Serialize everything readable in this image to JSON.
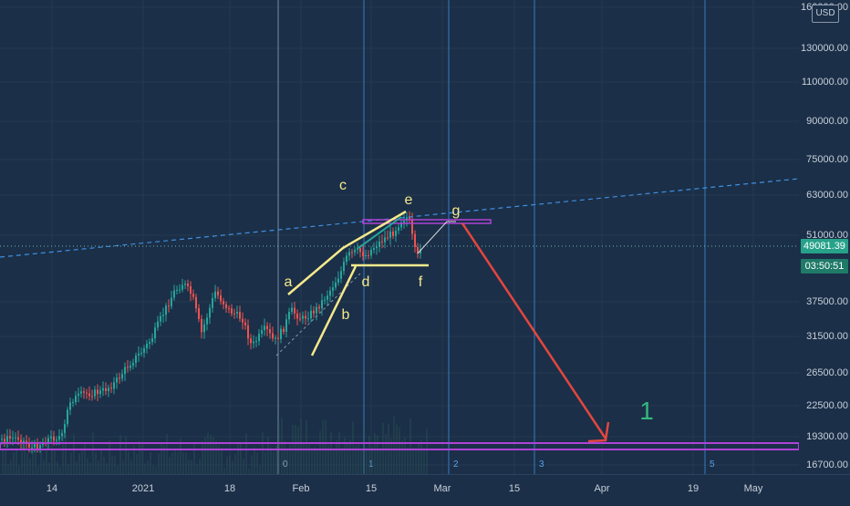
{
  "currency": "USD",
  "price_axis": [
    {
      "label": "160000.00",
      "value": 160000
    },
    {
      "label": "130000.00",
      "value": 130000
    },
    {
      "label": "110000.00",
      "value": 110000
    },
    {
      "label": "90000.00",
      "value": 90000
    },
    {
      "label": "75000.00",
      "value": 75000
    },
    {
      "label": "63000.00",
      "value": 63000
    },
    {
      "label": "51000.00",
      "value": 51000
    },
    {
      "label": "37500.00",
      "value": 37500
    },
    {
      "label": "31500.00",
      "value": 31500
    },
    {
      "label": "26500.00",
      "value": 26500
    },
    {
      "label": "22500.00",
      "value": 22500
    },
    {
      "label": "19300.00",
      "value": 19300
    },
    {
      "label": "16700.00",
      "value": 16700
    }
  ],
  "time_axis": [
    "14",
    "2021",
    "18",
    "Feb",
    "15",
    "Mar",
    "15",
    "Apr",
    "19",
    "May"
  ],
  "current_price": "49081.39",
  "countdown": "03:50:51",
  "wave_labels": [
    "a",
    "b",
    "c",
    "d",
    "e",
    "f",
    "g"
  ],
  "cycle_numbers": [
    "0",
    "1",
    "2",
    "3",
    "5"
  ],
  "big_label": "1",
  "colors": {
    "background": "#1b2f48",
    "wave_lines": "#f5e98c",
    "target_arrow": "#e2473f",
    "support_band": "#b043d6",
    "trendline": "#3f8fe0",
    "price_tag": "#27a28a",
    "big_label": "#35b77e"
  }
}
